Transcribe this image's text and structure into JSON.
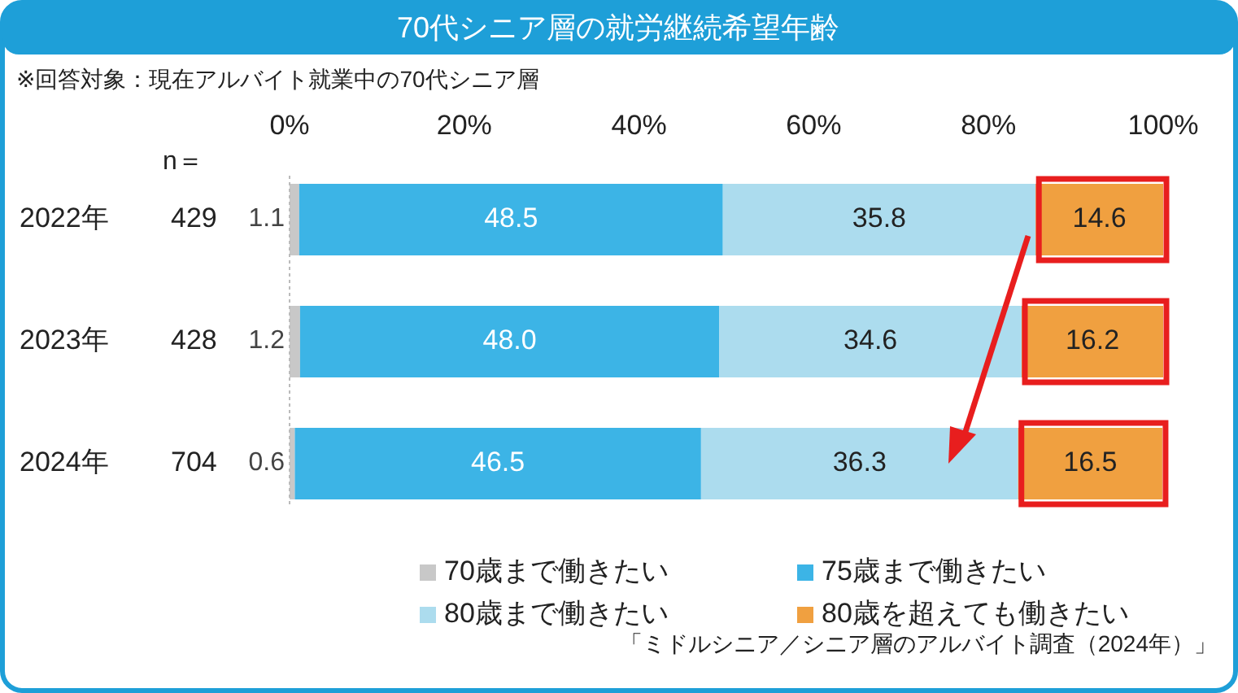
{
  "chart_data": {
    "type": "bar",
    "orientation": "horizontal",
    "stacked": true,
    "title": "70代シニア層の就労継続希望年齢",
    "subtitle": "※回答対象：現在アルバイト就業中の70代シニア層",
    "categories": [
      "2022年",
      "2023年",
      "2024年"
    ],
    "xlim": [
      0,
      100
    ],
    "xticks": [
      {
        "value": 0,
        "label": "0%"
      },
      {
        "value": 20,
        "label": "20%"
      },
      {
        "value": 40,
        "label": "40%"
      },
      {
        "value": 60,
        "label": "60%"
      },
      {
        "value": 80,
        "label": "80%"
      },
      {
        "value": 100,
        "label": "100%"
      }
    ],
    "series": [
      {
        "name": "70歳まで働きたい",
        "color": "#c8c8c8",
        "values": [
          1.1,
          1.2,
          0.6
        ]
      },
      {
        "name": "75歳まで働きたい",
        "color": "#3cb4e6",
        "values": [
          48.5,
          48.0,
          46.5
        ]
      },
      {
        "name": "80歳まで働きたい",
        "color": "#acdcee",
        "values": [
          35.8,
          34.6,
          36.3
        ]
      },
      {
        "name": "80歳を超えても働きたい",
        "color": "#f0a040",
        "values": [
          14.6,
          16.2,
          16.5
        ]
      }
    ],
    "value_labels": [
      [
        "1.1",
        "1.2",
        "0.6"
      ],
      [
        "48.5",
        "48.0",
        "46.5"
      ],
      [
        "35.8",
        "34.6",
        "36.3"
      ],
      [
        "14.6",
        "16.2",
        "16.5"
      ]
    ],
    "annotations": [
      "n＝",
      "429",
      "428",
      "704",
      "「ミドルシニア／シニア層のアルバイト調査（2024年）」"
    ],
    "legend": "bottom",
    "grid": false
  }
}
